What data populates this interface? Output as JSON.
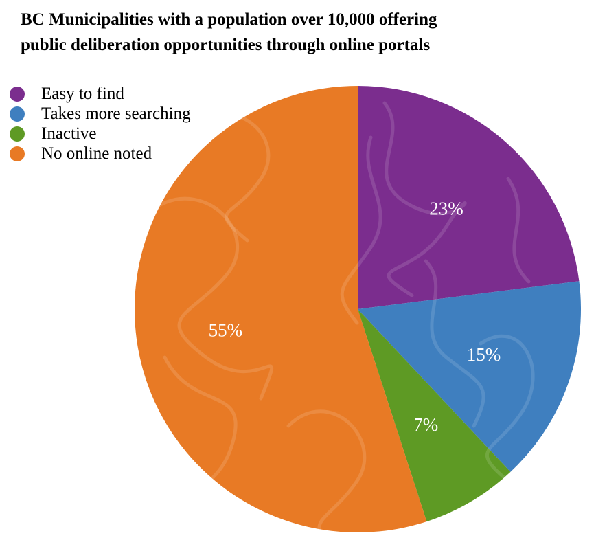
{
  "title_lines": [
    "BC Municipalities with a population over 10,000 offering",
    "public deliberation opportunities through online portals"
  ],
  "chart_data": {
    "type": "pie",
    "title": "BC Municipalities with a population over 10,000 offering public deliberation opportunities through online portals",
    "categories": [
      "Easy to find",
      "Takes more searching",
      "Inactive",
      "No online noted"
    ],
    "values": [
      23,
      15,
      7,
      55
    ],
    "labels": [
      "23%",
      "15%",
      "7%",
      "55%"
    ],
    "colors": [
      "#7b2d8e",
      "#3f7fbf",
      "#5e9a24",
      "#e87a25"
    ],
    "start_angle": "12 o'clock",
    "direction": "clockwise",
    "legend_position": "top-left"
  }
}
